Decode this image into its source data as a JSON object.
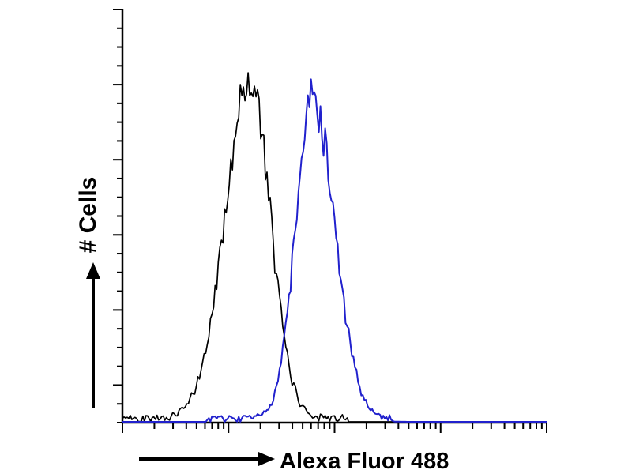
{
  "figure": {
    "background": "#ffffff"
  },
  "chart_data": {
    "type": "line",
    "subtype": "flow_cytometry_histogram",
    "title": "",
    "xlabel": "Alexa Fluor 488",
    "ylabel": "# Cells",
    "axis_color": "#000000",
    "grid": false,
    "legend": "none",
    "x_axis": {
      "scale": "log",
      "decades": 4
    },
    "y_axis": {
      "scale": "linear",
      "tick_count": 22,
      "major_every": 4
    },
    "series": [
      {
        "key": "black-histogram",
        "name": "black curve (left peak)",
        "color": "#000000",
        "stroke_width": 1.7,
        "peak_center": 0.3,
        "peak_height": 0.83,
        "sigma_left": 0.058,
        "sigma_right": 0.048,
        "noise": 0.08,
        "tail_noise": 0.018,
        "support": [
          0.0,
          0.53
        ],
        "seed": 42
      },
      {
        "key": "blue-histogram",
        "name": "blue curve (right peak)",
        "color": "#2121cd",
        "stroke_width": 2.0,
        "peak_center": 0.448,
        "peak_height": 0.78,
        "sigma_left": 0.04,
        "sigma_right": 0.052,
        "noise": 0.08,
        "tail_noise": 0.015,
        "support": [
          0.2,
          0.64
        ],
        "seed": 7
      }
    ]
  }
}
